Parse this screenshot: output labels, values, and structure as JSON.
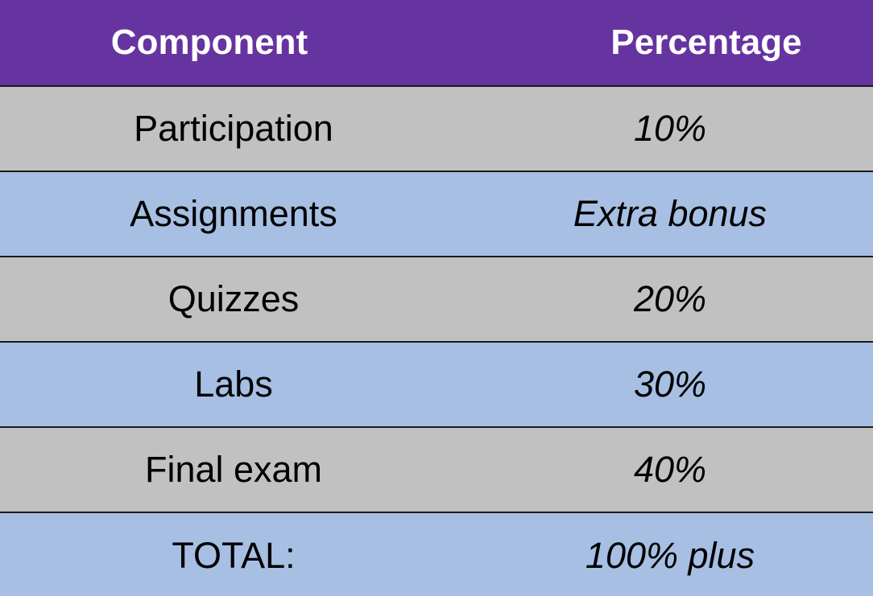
{
  "header": {
    "component": "Component",
    "percentage": "Percentage"
  },
  "rows": [
    {
      "component": "Participation",
      "percentage": "10%",
      "shade": "gray"
    },
    {
      "component": "Assignments",
      "percentage": "Extra bonus",
      "shade": "blue"
    },
    {
      "component": "Quizzes",
      "percentage": "20%",
      "shade": "gray"
    },
    {
      "component": "Labs",
      "percentage": "30%",
      "shade": "blue"
    },
    {
      "component": "Final exam",
      "percentage": "40%",
      "shade": "gray"
    },
    {
      "component": "TOTAL:",
      "percentage": "100% plus",
      "shade": "blue"
    }
  ],
  "colors": {
    "header_bg": "#6634a0",
    "row_gray": "#c1c1c1",
    "row_blue": "#a7bfe3"
  }
}
